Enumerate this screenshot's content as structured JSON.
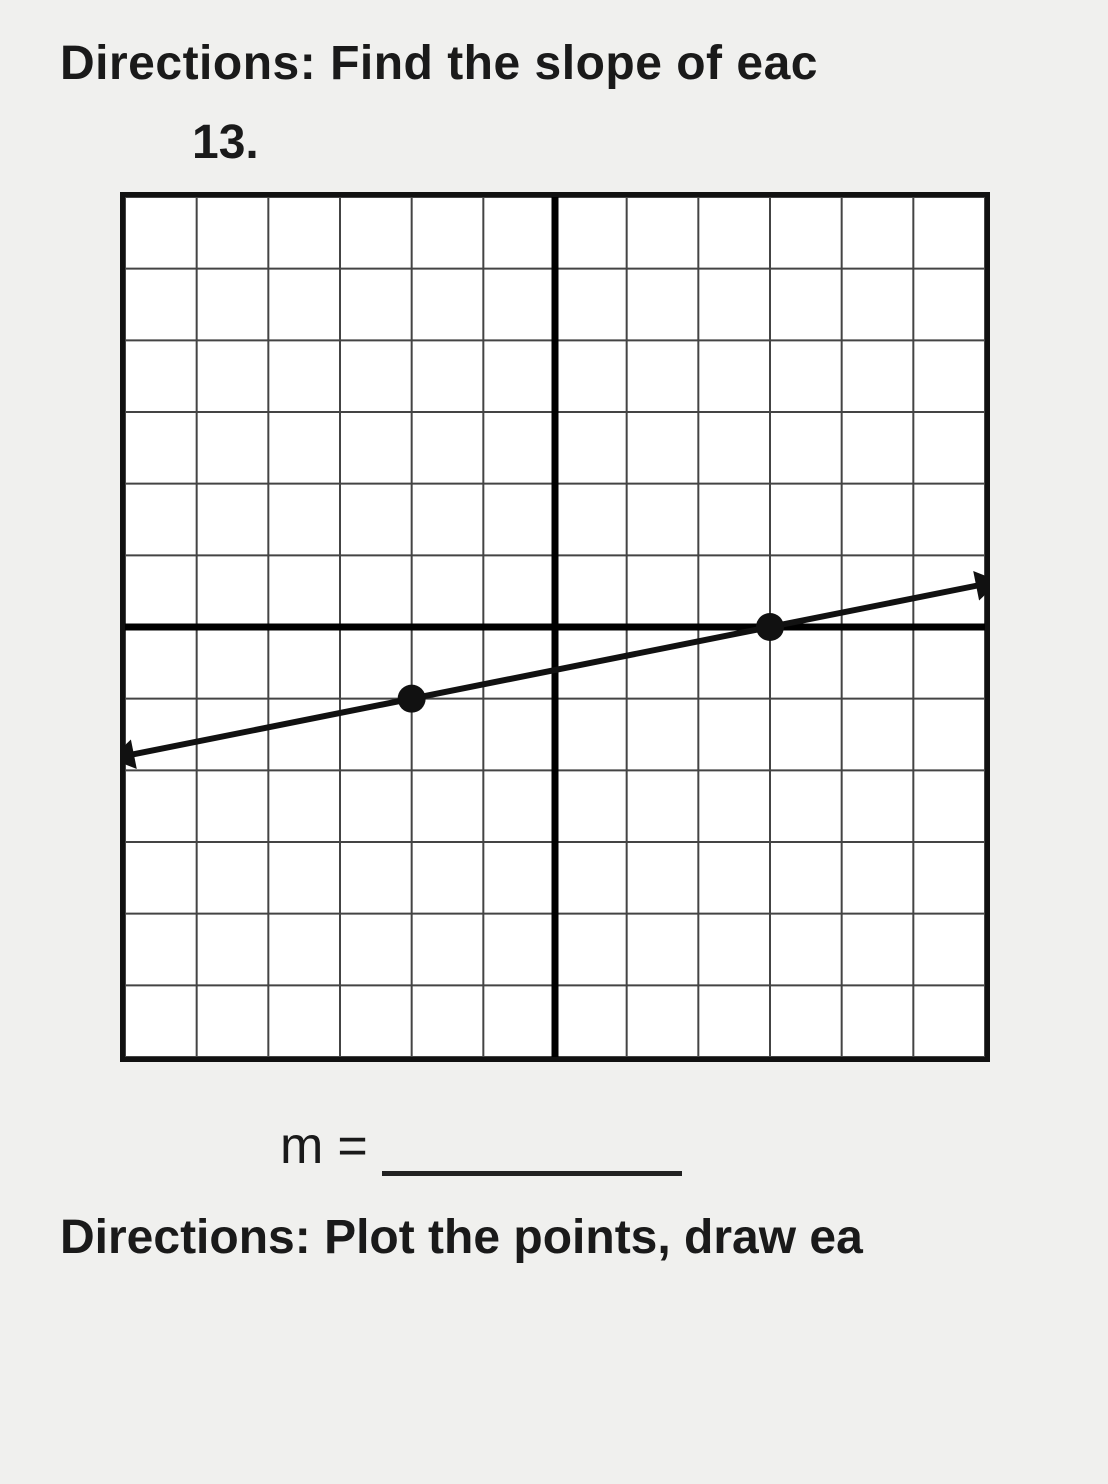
{
  "directions_top": {
    "label": "Directions:",
    "text": "Find the slope of eac"
  },
  "problem_number": "13.",
  "slope": {
    "var": "m",
    "equals": "="
  },
  "directions_bottom": {
    "label": "Directions:",
    "text": "Plot the points, draw ea"
  },
  "graph": {
    "type": "line",
    "grid": {
      "xmin": -6,
      "xmax": 6,
      "ymin": -6,
      "ymax": 6,
      "step": 1,
      "minor_line_color": "#444444",
      "minor_line_width": 2,
      "axis_color": "#000000",
      "axis_width": 7,
      "border_color": "#111111",
      "background_color": "#ffffff"
    },
    "line": {
      "points": [
        [
          -2,
          -1
        ],
        [
          3,
          0
        ]
      ],
      "extent": [
        [
          -6.2,
          -1.84
        ],
        [
          6.2,
          0.64
        ]
      ],
      "stroke": "#111111",
      "stroke_width": 6,
      "arrow_size": 28,
      "point_radius": 14,
      "point_fill": "#111111"
    }
  }
}
